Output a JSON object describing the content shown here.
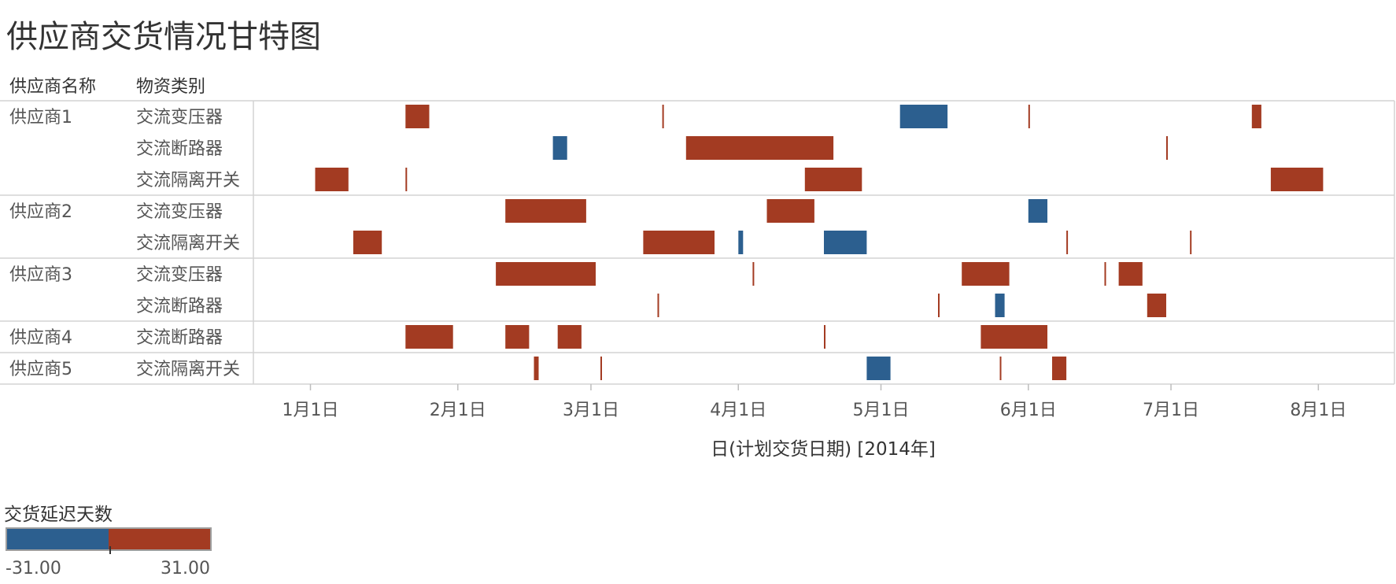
{
  "chart_data": {
    "type": "gantt",
    "title": "供应商交货情况甘特图",
    "row_headers": [
      "供应商名称",
      "物资类别"
    ],
    "xlabel": "日(计划交货日期) [2014年]",
    "x_ticks": [
      "1月1日",
      "2月1日",
      "3月1日",
      "4月1日",
      "5月1日",
      "6月1日",
      "7月1日",
      "8月1日"
    ],
    "xlim": [
      "2013-12-20",
      "2014-08-17"
    ],
    "colors": {
      "negative": "#2c5f8f",
      "positive": "#a33b22"
    },
    "legend": {
      "title": "交货延迟天数",
      "min": "-31.00",
      "max": "31.00",
      "min_value": -31,
      "max_value": 31
    },
    "groups": [
      {
        "supplier": "供应商1",
        "rows": [
          {
            "category": "交流变压器",
            "bars": [
              {
                "start": "2014-01-21",
                "days": 5,
                "delay": 5
              },
              {
                "start": "2014-03-16",
                "days": 0.3,
                "delay": 1
              },
              {
                "start": "2014-05-05",
                "days": 10,
                "delay": -10
              },
              {
                "start": "2014-06-01",
                "days": 0.3,
                "delay": 1
              },
              {
                "start": "2014-07-18",
                "days": 2,
                "delay": 2
              }
            ]
          },
          {
            "category": "交流断路器",
            "bars": [
              {
                "start": "2014-02-21",
                "days": 3,
                "delay": -3
              },
              {
                "start": "2014-03-21",
                "days": 31,
                "delay": 31
              },
              {
                "start": "2014-06-30",
                "days": 0.3,
                "delay": 1
              }
            ]
          },
          {
            "category": "交流隔离开关",
            "bars": [
              {
                "start": "2014-01-02",
                "days": 7,
                "delay": 7
              },
              {
                "start": "2014-01-21",
                "days": 0.3,
                "delay": 1
              },
              {
                "start": "2014-04-15",
                "days": 12,
                "delay": 12
              },
              {
                "start": "2014-07-22",
                "days": 11,
                "delay": 11
              }
            ]
          }
        ]
      },
      {
        "supplier": "供应商2",
        "rows": [
          {
            "category": "交流变压器",
            "bars": [
              {
                "start": "2014-02-11",
                "days": 17,
                "delay": 17
              },
              {
                "start": "2014-04-07",
                "days": 10,
                "delay": 10
              },
              {
                "start": "2014-06-01",
                "days": 4,
                "delay": -4
              }
            ]
          },
          {
            "category": "交流隔离开关",
            "bars": [
              {
                "start": "2014-01-10",
                "days": 6,
                "delay": 6
              },
              {
                "start": "2014-03-12",
                "days": 15,
                "delay": 15
              },
              {
                "start": "2014-04-01",
                "days": 1,
                "delay": -1
              },
              {
                "start": "2014-04-19",
                "days": 9,
                "delay": -9
              },
              {
                "start": "2014-06-09",
                "days": 0.3,
                "delay": 1
              },
              {
                "start": "2014-07-05",
                "days": 0.3,
                "delay": 1
              }
            ]
          }
        ]
      },
      {
        "supplier": "供应商3",
        "rows": [
          {
            "category": "交流变压器",
            "bars": [
              {
                "start": "2014-02-09",
                "days": 21,
                "delay": 21
              },
              {
                "start": "2014-04-04",
                "days": 0.3,
                "delay": 1
              },
              {
                "start": "2014-05-18",
                "days": 10,
                "delay": 10
              },
              {
                "start": "2014-06-17",
                "days": 0.3,
                "delay": 1
              },
              {
                "start": "2014-06-20",
                "days": 5,
                "delay": 5
              }
            ]
          },
          {
            "category": "交流断路器",
            "bars": [
              {
                "start": "2014-03-15",
                "days": 0.3,
                "delay": 1
              },
              {
                "start": "2014-05-13",
                "days": 0.3,
                "delay": 1
              },
              {
                "start": "2014-05-25",
                "days": 2,
                "delay": -2
              },
              {
                "start": "2014-06-26",
                "days": 4,
                "delay": 4
              }
            ]
          }
        ]
      },
      {
        "supplier": "供应商4",
        "rows": [
          {
            "category": "交流断路器",
            "bars": [
              {
                "start": "2014-01-21",
                "days": 10,
                "delay": 10
              },
              {
                "start": "2014-02-11",
                "days": 5,
                "delay": 5
              },
              {
                "start": "2014-02-22",
                "days": 5,
                "delay": 5
              },
              {
                "start": "2014-04-19",
                "days": 0.3,
                "delay": 1
              },
              {
                "start": "2014-05-22",
                "days": 14,
                "delay": 14
              }
            ]
          }
        ]
      },
      {
        "supplier": "供应商5",
        "rows": [
          {
            "category": "交流隔离开关",
            "bars": [
              {
                "start": "2014-02-17",
                "days": 1,
                "delay": 1
              },
              {
                "start": "2014-03-03",
                "days": 0.3,
                "delay": 1
              },
              {
                "start": "2014-04-28",
                "days": 5,
                "delay": -5
              },
              {
                "start": "2014-05-26",
                "days": 0.3,
                "delay": 1
              },
              {
                "start": "2014-06-06",
                "days": 3,
                "delay": 3
              }
            ]
          }
        ]
      }
    ]
  }
}
